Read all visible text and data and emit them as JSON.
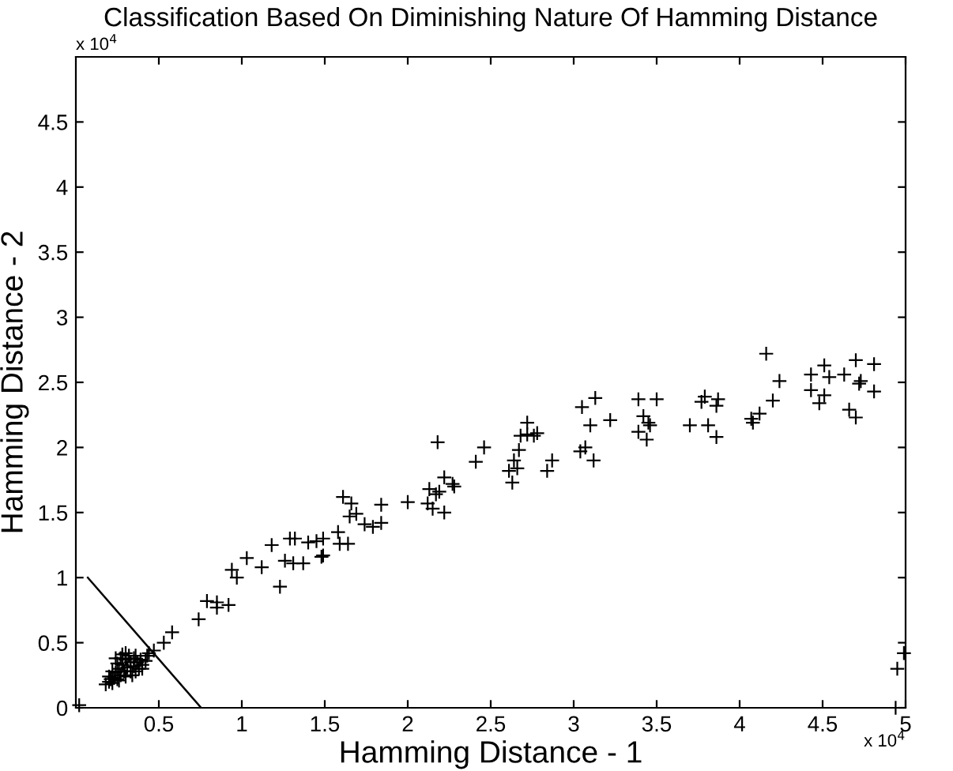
{
  "chart_data": {
    "type": "scatter",
    "title": "Classification Based On Diminishing Nature Of Hamming Distance",
    "xlabel": "Hamming Distance - 1",
    "ylabel": "Hamming Distance - 2",
    "annotations": [
      "x 10$^{4}$",
      "x 10$^{4}$"
    ],
    "xlim": [
      0,
      5
    ],
    "ylim": [
      0,
      5
    ],
    "xticks": [
      0.5,
      1,
      1.5,
      2,
      2.5,
      3,
      3.5,
      4,
      4.5,
      5
    ],
    "yticks": [
      0,
      0.5,
      1,
      1.5,
      2,
      2.5,
      3,
      3.5,
      4,
      4.5
    ],
    "grid": false,
    "legend": false,
    "marker": "cross",
    "series": [
      {
        "color": "#000000",
        "x": [
          0.02,
          0.18,
          0.2,
          0.22,
          0.2,
          0.23,
          0.25,
          0.24,
          0.27,
          0.26,
          0.29,
          0.3,
          0.28,
          0.31,
          0.33,
          0.3,
          0.33,
          0.35,
          0.27,
          0.25,
          0.32,
          0.35,
          0.37,
          0.38,
          0.34,
          0.36,
          0.4,
          0.42,
          0.39,
          0.22,
          0.28,
          0.24,
          0.3,
          0.26,
          0.21,
          0.4,
          0.36,
          0.43,
          0.44,
          0.47,
          0.53,
          0.58,
          0.74,
          0.79,
          0.85,
          0.85,
          0.92,
          0.94,
          0.97,
          1.03,
          1.12,
          1.18,
          1.23,
          1.26,
          1.29,
          1.31,
          1.37,
          1.32,
          1.4,
          1.45,
          1.48,
          1.49,
          1.49,
          1.58,
          1.59,
          1.64,
          1.61,
          1.66,
          1.65,
          1.69,
          1.74,
          1.79,
          1.84,
          1.84,
          2.0,
          2.12,
          2.13,
          2.15,
          2.17,
          2.18,
          2.19,
          2.22,
          2.22,
          2.27,
          2.28,
          2.41,
          2.46,
          2.61,
          2.63,
          2.64,
          2.66,
          2.67,
          2.68,
          2.72,
          2.72,
          2.76,
          2.78,
          2.84,
          2.87,
          3.05,
          3.04,
          3.07,
          3.1,
          3.12,
          3.13,
          3.22,
          3.39,
          3.5,
          3.42,
          3.45,
          3.39,
          3.44,
          3.46,
          3.7,
          3.77,
          3.79,
          3.81,
          3.86,
          3.87,
          3.86,
          4.07,
          4.08,
          4.12,
          4.16,
          4.2,
          4.24,
          4.43,
          4.43,
          4.51,
          4.51,
          4.48,
          4.54,
          4.63,
          4.66,
          4.7,
          4.7,
          4.72,
          4.73,
          4.81,
          4.81,
          4.99,
          4.95,
          4.94
        ],
        "values": [
          0.02,
          0.18,
          0.2,
          0.19,
          0.24,
          0.23,
          0.22,
          0.27,
          0.25,
          0.3,
          0.28,
          0.24,
          0.33,
          0.31,
          0.28,
          0.37,
          0.35,
          0.32,
          0.38,
          0.34,
          0.4,
          0.38,
          0.35,
          0.3,
          0.25,
          0.28,
          0.33,
          0.36,
          0.37,
          0.28,
          0.41,
          0.38,
          0.42,
          0.21,
          0.22,
          0.3,
          0.4,
          0.4,
          0.42,
          0.44,
          0.5,
          0.58,
          0.68,
          0.82,
          0.81,
          0.77,
          0.79,
          1.06,
          1.0,
          1.15,
          1.08,
          1.25,
          0.93,
          1.13,
          1.3,
          1.11,
          1.11,
          1.3,
          1.27,
          1.28,
          1.16,
          1.3,
          1.17,
          1.35,
          1.26,
          1.26,
          1.62,
          1.57,
          1.47,
          1.49,
          1.41,
          1.39,
          1.42,
          1.56,
          1.58,
          1.57,
          1.68,
          1.53,
          1.64,
          2.04,
          1.66,
          1.5,
          1.77,
          1.72,
          1.7,
          1.89,
          2.0,
          1.82,
          1.73,
          1.9,
          1.84,
          1.98,
          2.09,
          2.19,
          2.1,
          2.09,
          2.11,
          1.82,
          1.9,
          2.31,
          1.97,
          2.0,
          2.17,
          1.9,
          2.38,
          2.21,
          2.37,
          2.37,
          2.24,
          2.19,
          2.12,
          2.06,
          2.17,
          2.17,
          2.35,
          2.39,
          2.17,
          2.08,
          2.37,
          2.32,
          2.22,
          2.19,
          2.26,
          2.72,
          2.36,
          2.51,
          2.56,
          2.44,
          2.63,
          2.4,
          2.34,
          2.54,
          2.56,
          2.29,
          2.23,
          2.67,
          2.49,
          2.51,
          2.64,
          2.43,
          0.42,
          0.3,
          0
        ]
      },
      {
        "type": "line",
        "color": "#000000",
        "marker": "none",
        "x": [
          0.072,
          0.755
        ],
        "values": [
          1.0,
          0
        ]
      }
    ]
  }
}
